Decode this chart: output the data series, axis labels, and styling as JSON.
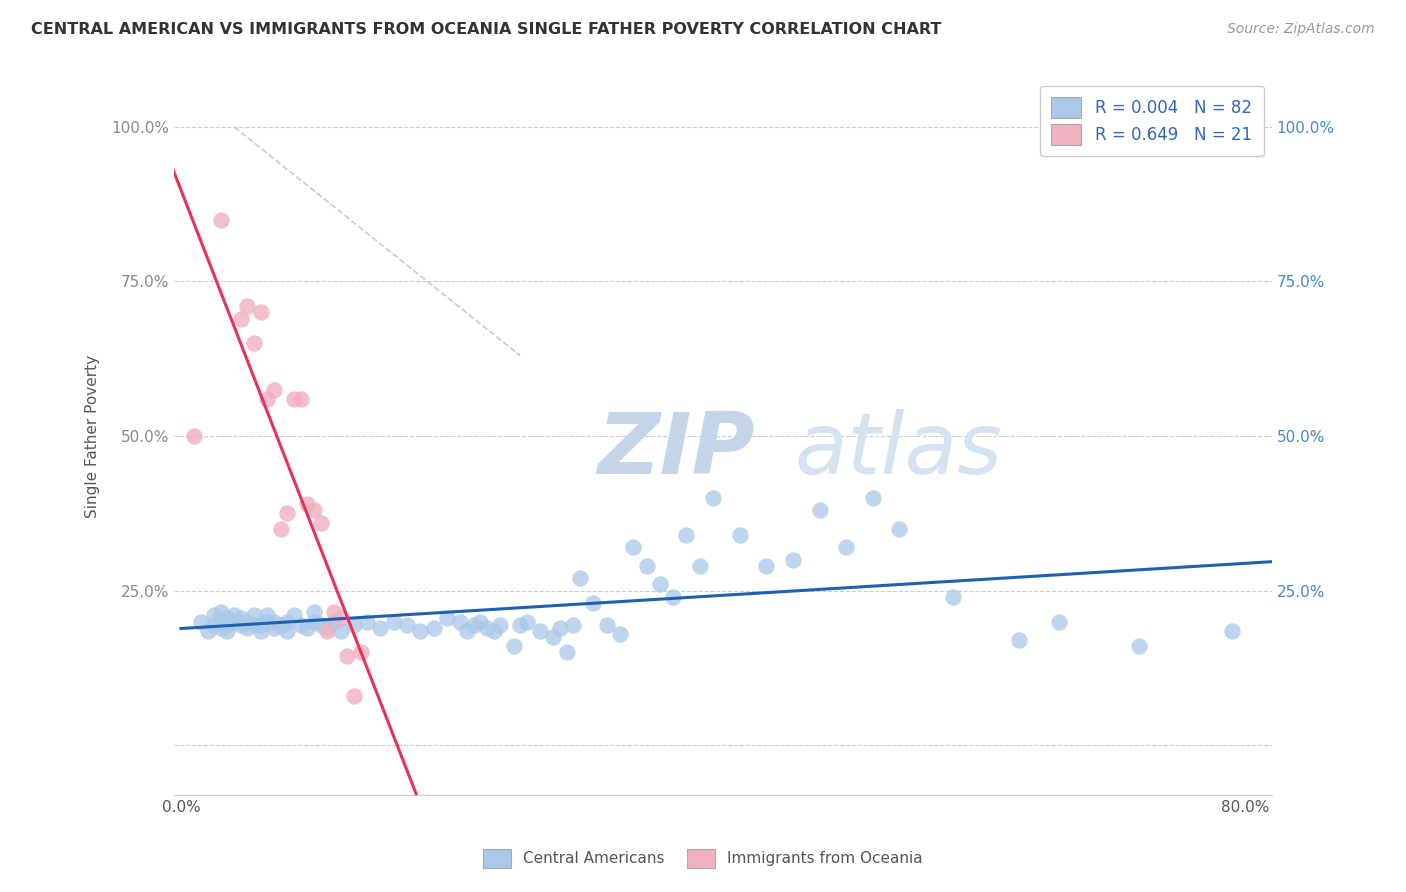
{
  "title": "CENTRAL AMERICAN VS IMMIGRANTS FROM OCEANIA SINGLE FATHER POVERTY CORRELATION CHART",
  "source": "Source: ZipAtlas.com",
  "xlabel": "",
  "ylabel": "Single Father Poverty",
  "xlim": [
    -0.005,
    0.82
  ],
  "ylim": [
    -0.08,
    1.08
  ],
  "yticks": [
    0.0,
    0.25,
    0.5,
    0.75,
    1.0
  ],
  "ytick_labels_left": [
    "",
    "25.0%",
    "50.0%",
    "75.0%",
    "100.0%"
  ],
  "ytick_labels_right": [
    "",
    "25.0%",
    "50.0%",
    "75.0%",
    "100.0%"
  ],
  "xticks": [
    0.0,
    0.2,
    0.4,
    0.6,
    0.8
  ],
  "xtick_labels": [
    "0.0%",
    "",
    "",
    "",
    "80.0%"
  ],
  "blue_color": "#aac8e8",
  "pink_color": "#f0b0c0",
  "blue_line_color": "#2060b0",
  "pink_line_color": "#e8305a",
  "blue_R": 0.004,
  "blue_N": 82,
  "pink_R": 0.649,
  "pink_N": 21,
  "watermark_zip": "ZIP",
  "watermark_atlas": "atlas",
  "background_color": "#ffffff",
  "blue_scatter_x": [
    0.015,
    0.02,
    0.025,
    0.025,
    0.03,
    0.03,
    0.03,
    0.035,
    0.035,
    0.035,
    0.04,
    0.04,
    0.045,
    0.045,
    0.05,
    0.05,
    0.055,
    0.055,
    0.06,
    0.06,
    0.065,
    0.065,
    0.07,
    0.07,
    0.075,
    0.08,
    0.08,
    0.085,
    0.09,
    0.095,
    0.1,
    0.1,
    0.105,
    0.11,
    0.115,
    0.12,
    0.13,
    0.14,
    0.15,
    0.16,
    0.17,
    0.18,
    0.19,
    0.2,
    0.21,
    0.215,
    0.22,
    0.225,
    0.23,
    0.235,
    0.24,
    0.25,
    0.255,
    0.26,
    0.27,
    0.28,
    0.285,
    0.29,
    0.295,
    0.3,
    0.31,
    0.32,
    0.33,
    0.34,
    0.35,
    0.36,
    0.37,
    0.38,
    0.39,
    0.4,
    0.42,
    0.44,
    0.46,
    0.48,
    0.5,
    0.52,
    0.54,
    0.58,
    0.63,
    0.66,
    0.72,
    0.79
  ],
  "blue_scatter_y": [
    0.2,
    0.185,
    0.21,
    0.195,
    0.19,
    0.2,
    0.215,
    0.195,
    0.205,
    0.185,
    0.2,
    0.21,
    0.195,
    0.205,
    0.19,
    0.2,
    0.195,
    0.21,
    0.185,
    0.195,
    0.2,
    0.21,
    0.19,
    0.2,
    0.195,
    0.185,
    0.2,
    0.21,
    0.195,
    0.19,
    0.2,
    0.215,
    0.195,
    0.19,
    0.2,
    0.185,
    0.195,
    0.2,
    0.19,
    0.2,
    0.195,
    0.185,
    0.19,
    0.205,
    0.2,
    0.185,
    0.195,
    0.2,
    0.19,
    0.185,
    0.195,
    0.16,
    0.195,
    0.2,
    0.185,
    0.175,
    0.19,
    0.15,
    0.195,
    0.27,
    0.23,
    0.195,
    0.18,
    0.32,
    0.29,
    0.26,
    0.24,
    0.34,
    0.29,
    0.4,
    0.34,
    0.29,
    0.3,
    0.38,
    0.32,
    0.4,
    0.35,
    0.24,
    0.17,
    0.2,
    0.16,
    0.185
  ],
  "pink_scatter_x": [
    0.01,
    0.03,
    0.045,
    0.05,
    0.055,
    0.06,
    0.065,
    0.07,
    0.075,
    0.08,
    0.085,
    0.09,
    0.095,
    0.1,
    0.105,
    0.11,
    0.115,
    0.12,
    0.125,
    0.13,
    0.135
  ],
  "pink_scatter_y": [
    0.5,
    0.85,
    0.69,
    0.71,
    0.65,
    0.7,
    0.56,
    0.575,
    0.35,
    0.375,
    0.56,
    0.56,
    0.39,
    0.38,
    0.36,
    0.185,
    0.215,
    0.205,
    0.145,
    0.08,
    0.15
  ],
  "ref_line_x": [
    0.04,
    0.255
  ],
  "ref_line_y": [
    1.0,
    0.63
  ]
}
